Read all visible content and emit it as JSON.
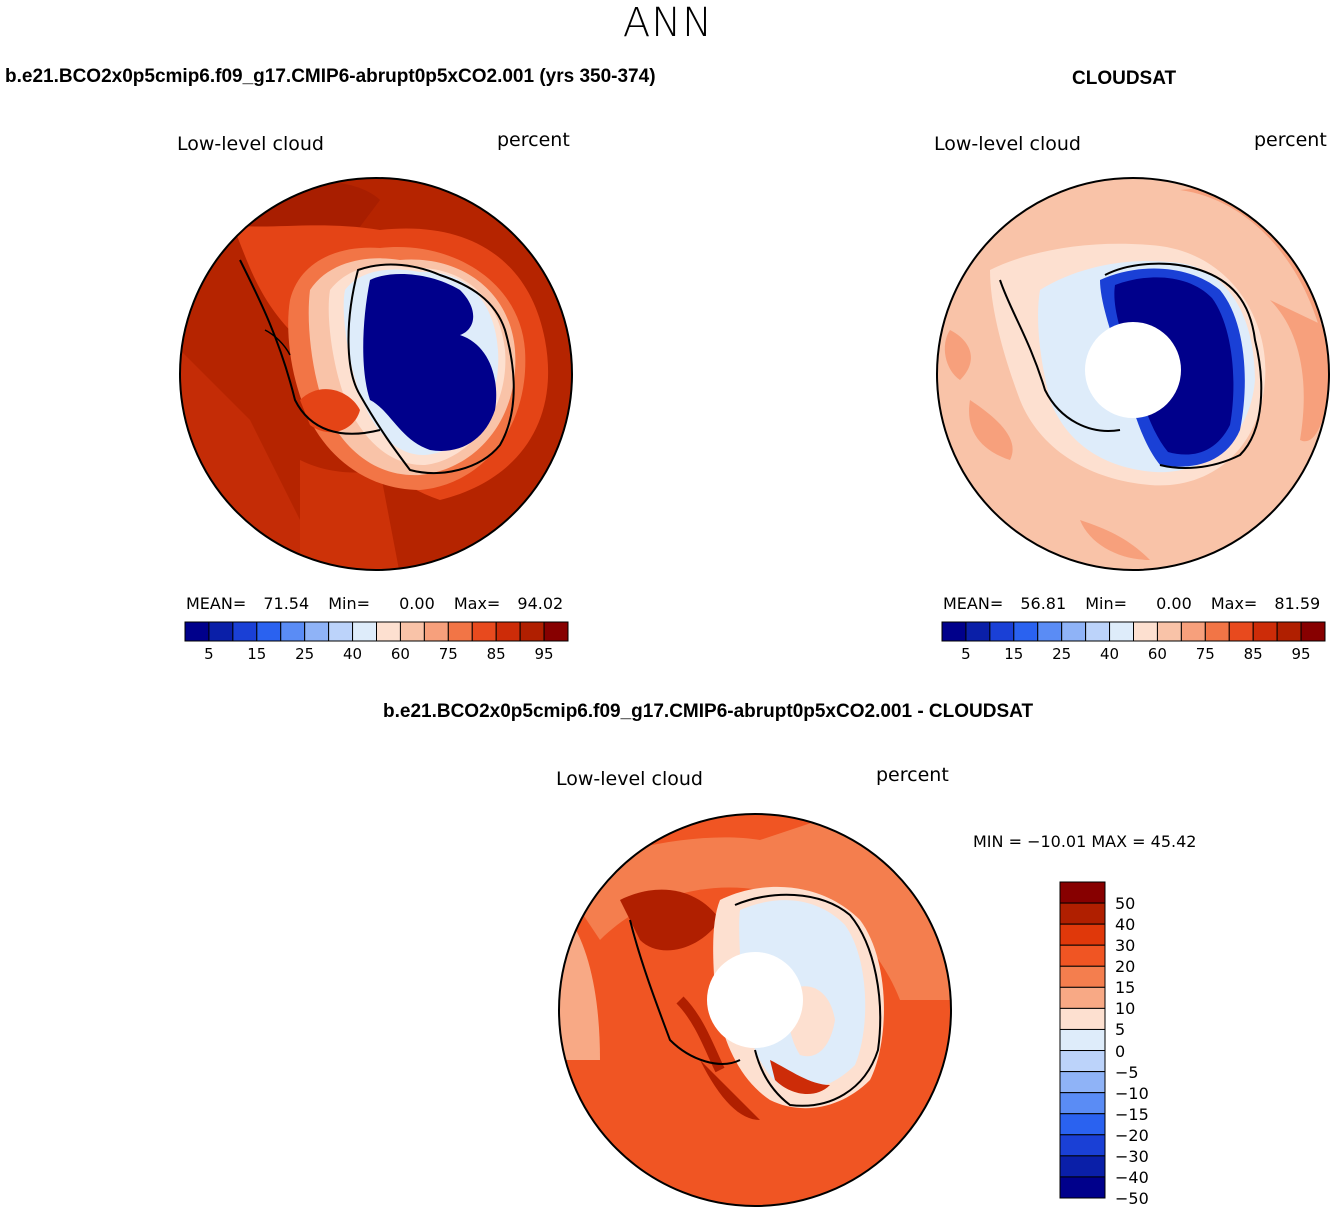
{
  "season": "ANN",
  "panels": {
    "model": {
      "title": "b.e21.BCO2x0p5cmip6.f09_g17.CMIP6-abrupt0p5xCO2.001 (yrs 350-374)",
      "variable": "Low-level cloud",
      "units": "percent",
      "stats": {
        "mean_label": "MEAN=",
        "mean": "71.54",
        "min_label": "Min=",
        "min": "0.00",
        "max_label": "Max=",
        "max": "94.02"
      }
    },
    "obs": {
      "title": "CLOUDSAT",
      "variable": "Low-level cloud",
      "units": "percent",
      "stats": {
        "mean_label": "MEAN=",
        "mean": "56.81",
        "min_label": "Min=",
        "min": "0.00",
        "max_label": "Max=",
        "max": "81.59"
      }
    },
    "diff": {
      "title": "b.e21.BCO2x0p5cmip6.f09_g17.CMIP6-abrupt0p5xCO2.001 - CLOUDSAT",
      "variable": "Low-level cloud",
      "units": "percent",
      "minmax": "MIN = −10.01 MAX =  45.42"
    }
  },
  "colorbar_main": {
    "colors": [
      "#00008b",
      "#0a1fa8",
      "#1a40d6",
      "#2a62f0",
      "#5a8cf5",
      "#8fb3f7",
      "#bcd3fa",
      "#deecfa",
      "#fde0d0",
      "#f9c3a8",
      "#f7a07c",
      "#f27546",
      "#e84a1e",
      "#cd2c08",
      "#b01f00",
      "#870000"
    ],
    "labels": [
      "5",
      "15",
      "25",
      "40",
      "60",
      "75",
      "85",
      "95"
    ]
  },
  "colorbar_diff": {
    "colors": [
      "#870000",
      "#b01f00",
      "#e0380a",
      "#f05523",
      "#f47e4e",
      "#f8a985",
      "#fde0d0",
      "#deecfa",
      "#bcd3fa",
      "#8fb3f7",
      "#5a8cf5",
      "#2a62f0",
      "#1a40d6",
      "#0a1fa8",
      "#00008b"
    ],
    "labels": [
      "50",
      "40",
      "30",
      "20",
      "15",
      "10",
      "5",
      "0",
      "−5",
      "−10",
      "−15",
      "−20",
      "−30",
      "−40",
      "−50"
    ]
  }
}
